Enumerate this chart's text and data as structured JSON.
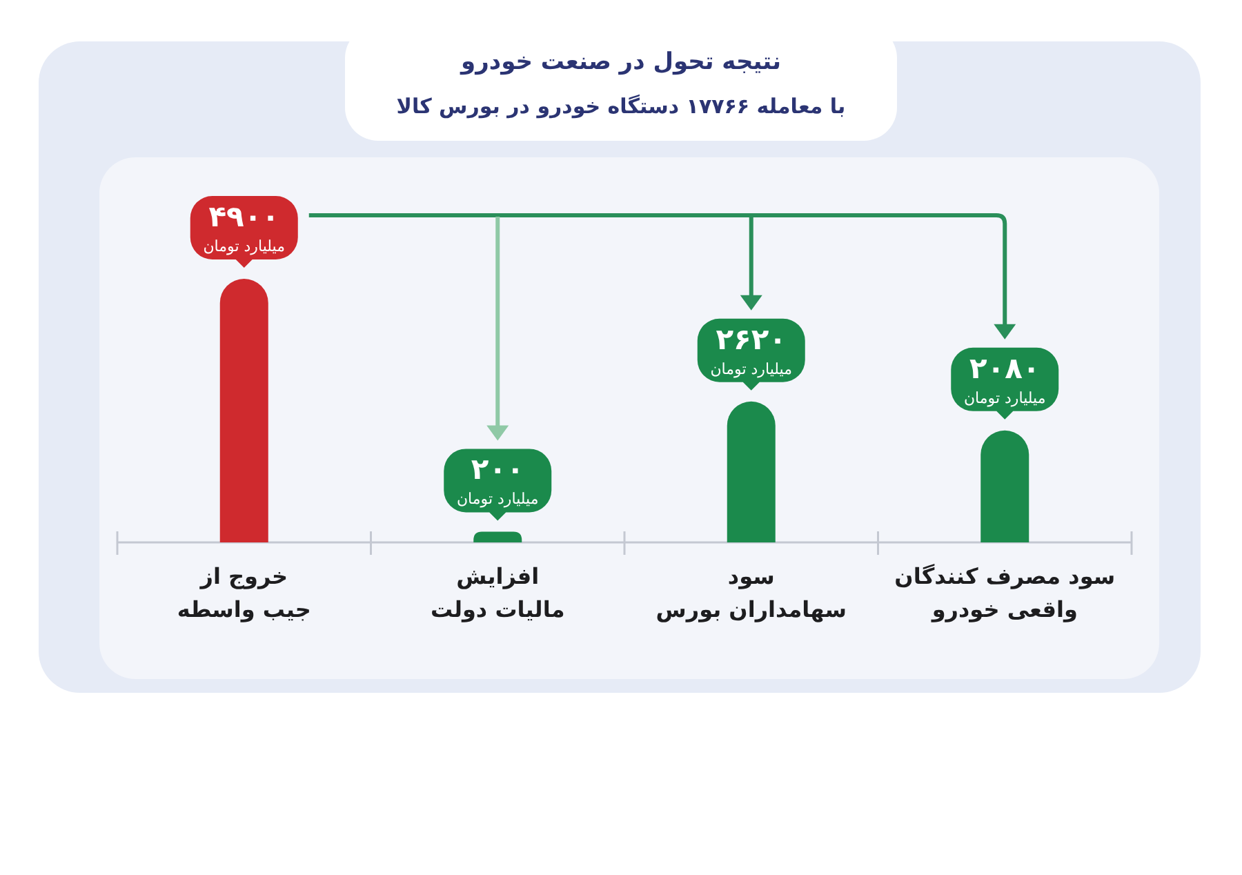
{
  "chart_data": {
    "type": "bar",
    "title": "نتیجه تحول در صنعت خودرو",
    "subtitle": "با معامله ۱۷۷۶۶ دستگاه خودرو در بورس کالا",
    "categories": [
      "خروج از\nجیب واسطه",
      "افزایش\nمالیات دولت",
      "سود\nسهامداران بورس",
      "سود مصرف کنندگان\nواقعی خودرو"
    ],
    "values": [
      4900,
      200,
      2620,
      2080
    ],
    "colors": [
      "#cf2a2e",
      "#1b8a4c",
      "#1b8a4c",
      "#1b8a4c"
    ],
    "value_labels": [
      "۴۹۰۰\nمیلیارد تومان",
      "۲۰۰\nمیلیارد تومان",
      "۲۶۲۰\nمیلیارد تومان",
      "۲۰۸۰\nمیلیارد تومان"
    ]
  }
}
